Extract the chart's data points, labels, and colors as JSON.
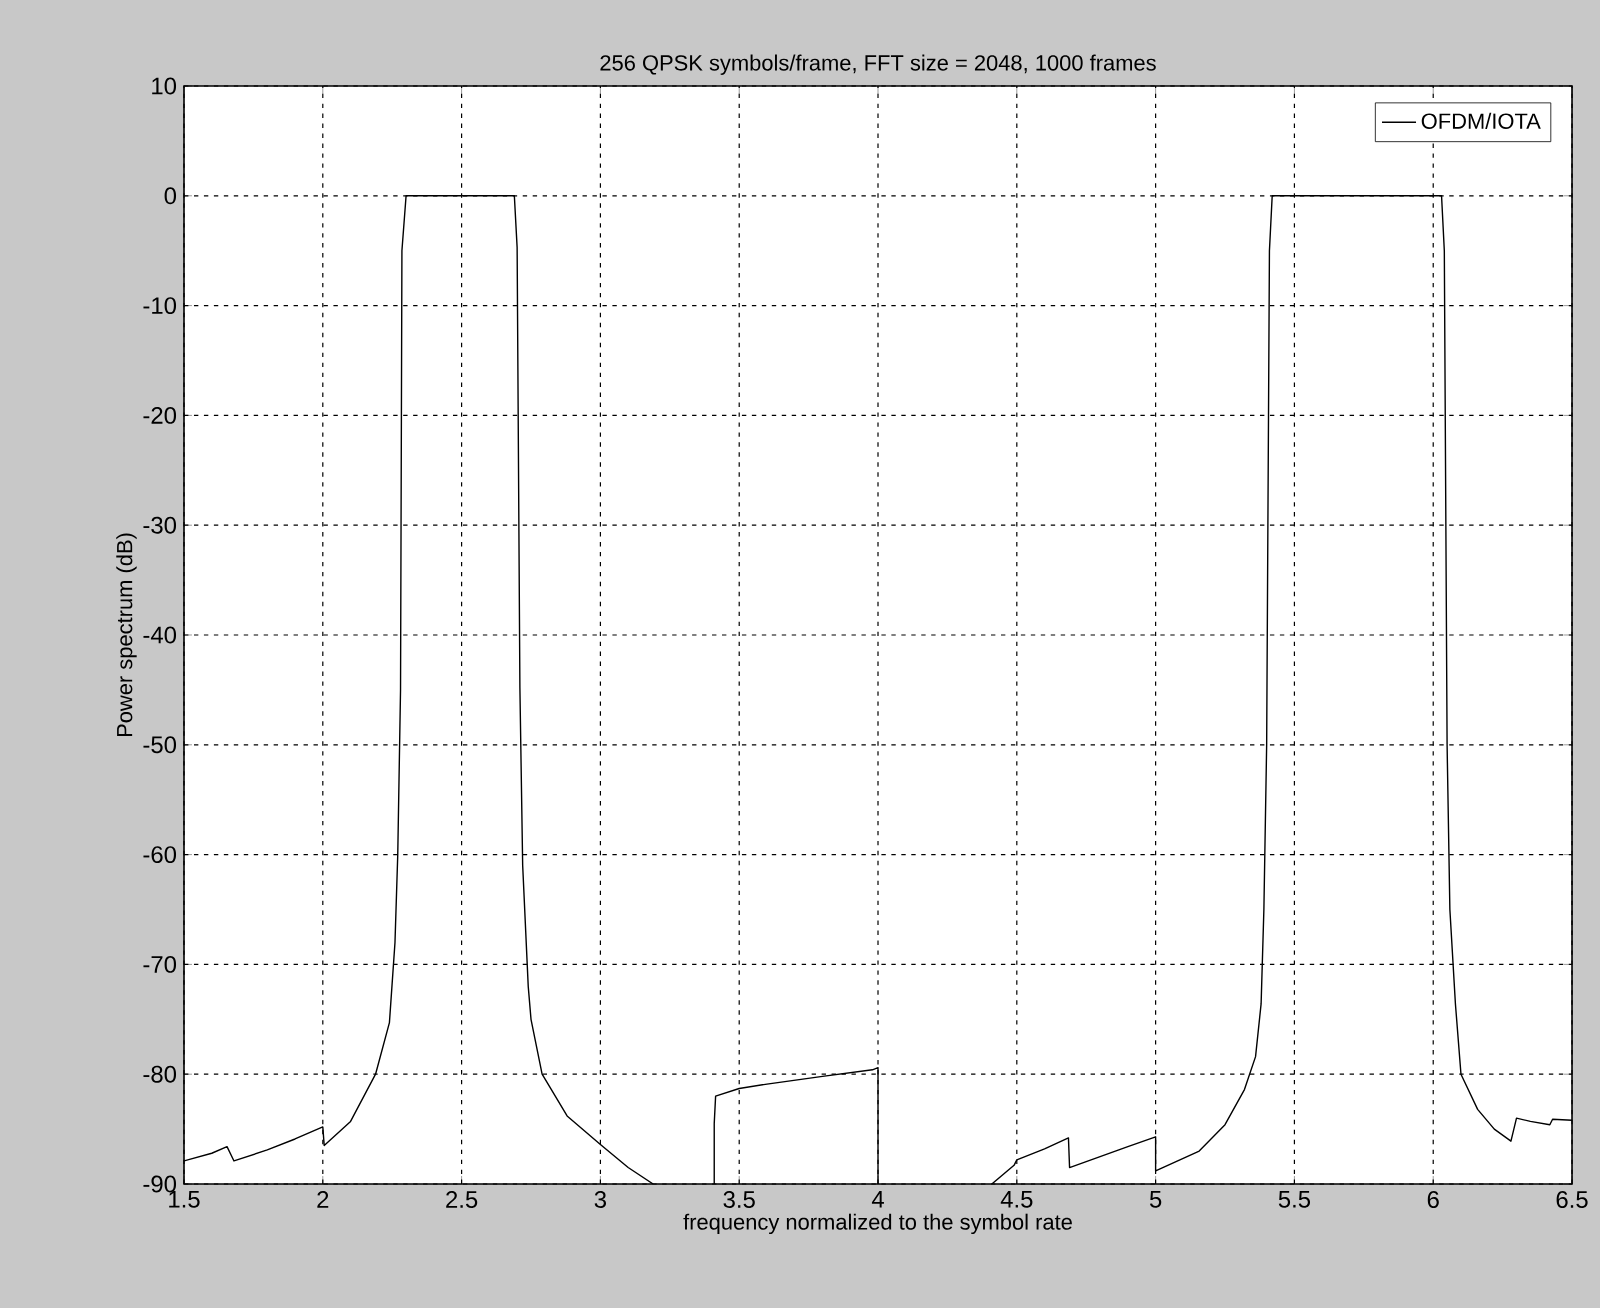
{
  "chart_data": {
    "type": "line",
    "title": "256 QPSK symbols/frame, FFT size = 2048, 1000 frames",
    "xlabel": "frequency normalized to the symbol rate",
    "ylabel": "Power spectrum (dB)",
    "x": [
      1.5,
      1.6,
      1.655,
      1.68,
      1.8,
      1.9,
      2.0,
      2.005,
      2.1,
      2.19,
      2.24,
      2.26,
      2.27,
      2.28,
      2.285,
      2.3,
      2.5,
      2.69,
      2.7,
      2.71,
      2.72,
      2.74,
      2.75,
      2.79,
      2.88,
      3.0,
      3.1,
      3.19,
      3.3,
      3.41,
      3.41,
      3.415,
      3.5,
      3.6,
      3.8,
      3.98,
      4.0,
      4.0,
      4.2,
      4.41,
      4.49,
      4.5,
      4.6,
      4.686,
      4.69,
      4.8,
      4.9,
      5.0,
      5.0,
      5.157,
      5.25,
      5.32,
      5.36,
      5.38,
      5.39,
      5.4,
      5.41,
      5.42,
      5.7,
      6.03,
      6.04,
      6.05,
      6.06,
      6.08,
      6.1,
      6.16,
      6.22,
      6.28,
      6.3,
      6.35,
      6.42,
      6.43,
      6.5
    ],
    "series": [
      {
        "name": "OFDM/IOTA",
        "color": "#000000",
        "values": [
          -87.9,
          -87.2,
          -86.6,
          -87.9,
          -86.9,
          -85.9,
          -84.8,
          -86.5,
          -84.3,
          -80,
          -75.3,
          -68,
          -60,
          -45,
          -5,
          0,
          0,
          0,
          -4.7,
          -44.8,
          -61,
          -72,
          -75,
          -80,
          -83.8,
          -86.4,
          -88.5,
          -90,
          null,
          -90,
          -84.5,
          -82,
          -81.3,
          -80.9,
          -80.2,
          -79.6,
          -79.4,
          -90,
          null,
          -90,
          -88.3,
          -87.8,
          -86.8,
          -85.8,
          -88.5,
          -87.5,
          -86.6,
          -85.7,
          -88.8,
          -87,
          -84.6,
          -81.4,
          -78.4,
          -73.6,
          -65,
          -50,
          -5,
          0,
          0,
          0,
          -5,
          -50,
          -65,
          -73.6,
          -80,
          -83.2,
          -85,
          -86.1,
          -84,
          -84.3,
          -84.6,
          -84.1,
          -84.2
        ]
      }
    ],
    "xlim": [
      1.5,
      6.5
    ],
    "ylim": [
      -90,
      10
    ],
    "xticks": [
      1.5,
      2,
      2.5,
      3,
      3.5,
      4,
      4.5,
      5,
      5.5,
      6,
      6.5
    ],
    "yticks": [
      -90,
      -80,
      -70,
      -60,
      -50,
      -40,
      -30,
      -20,
      -10,
      0,
      10
    ],
    "grid": true,
    "legend": "top right"
  }
}
